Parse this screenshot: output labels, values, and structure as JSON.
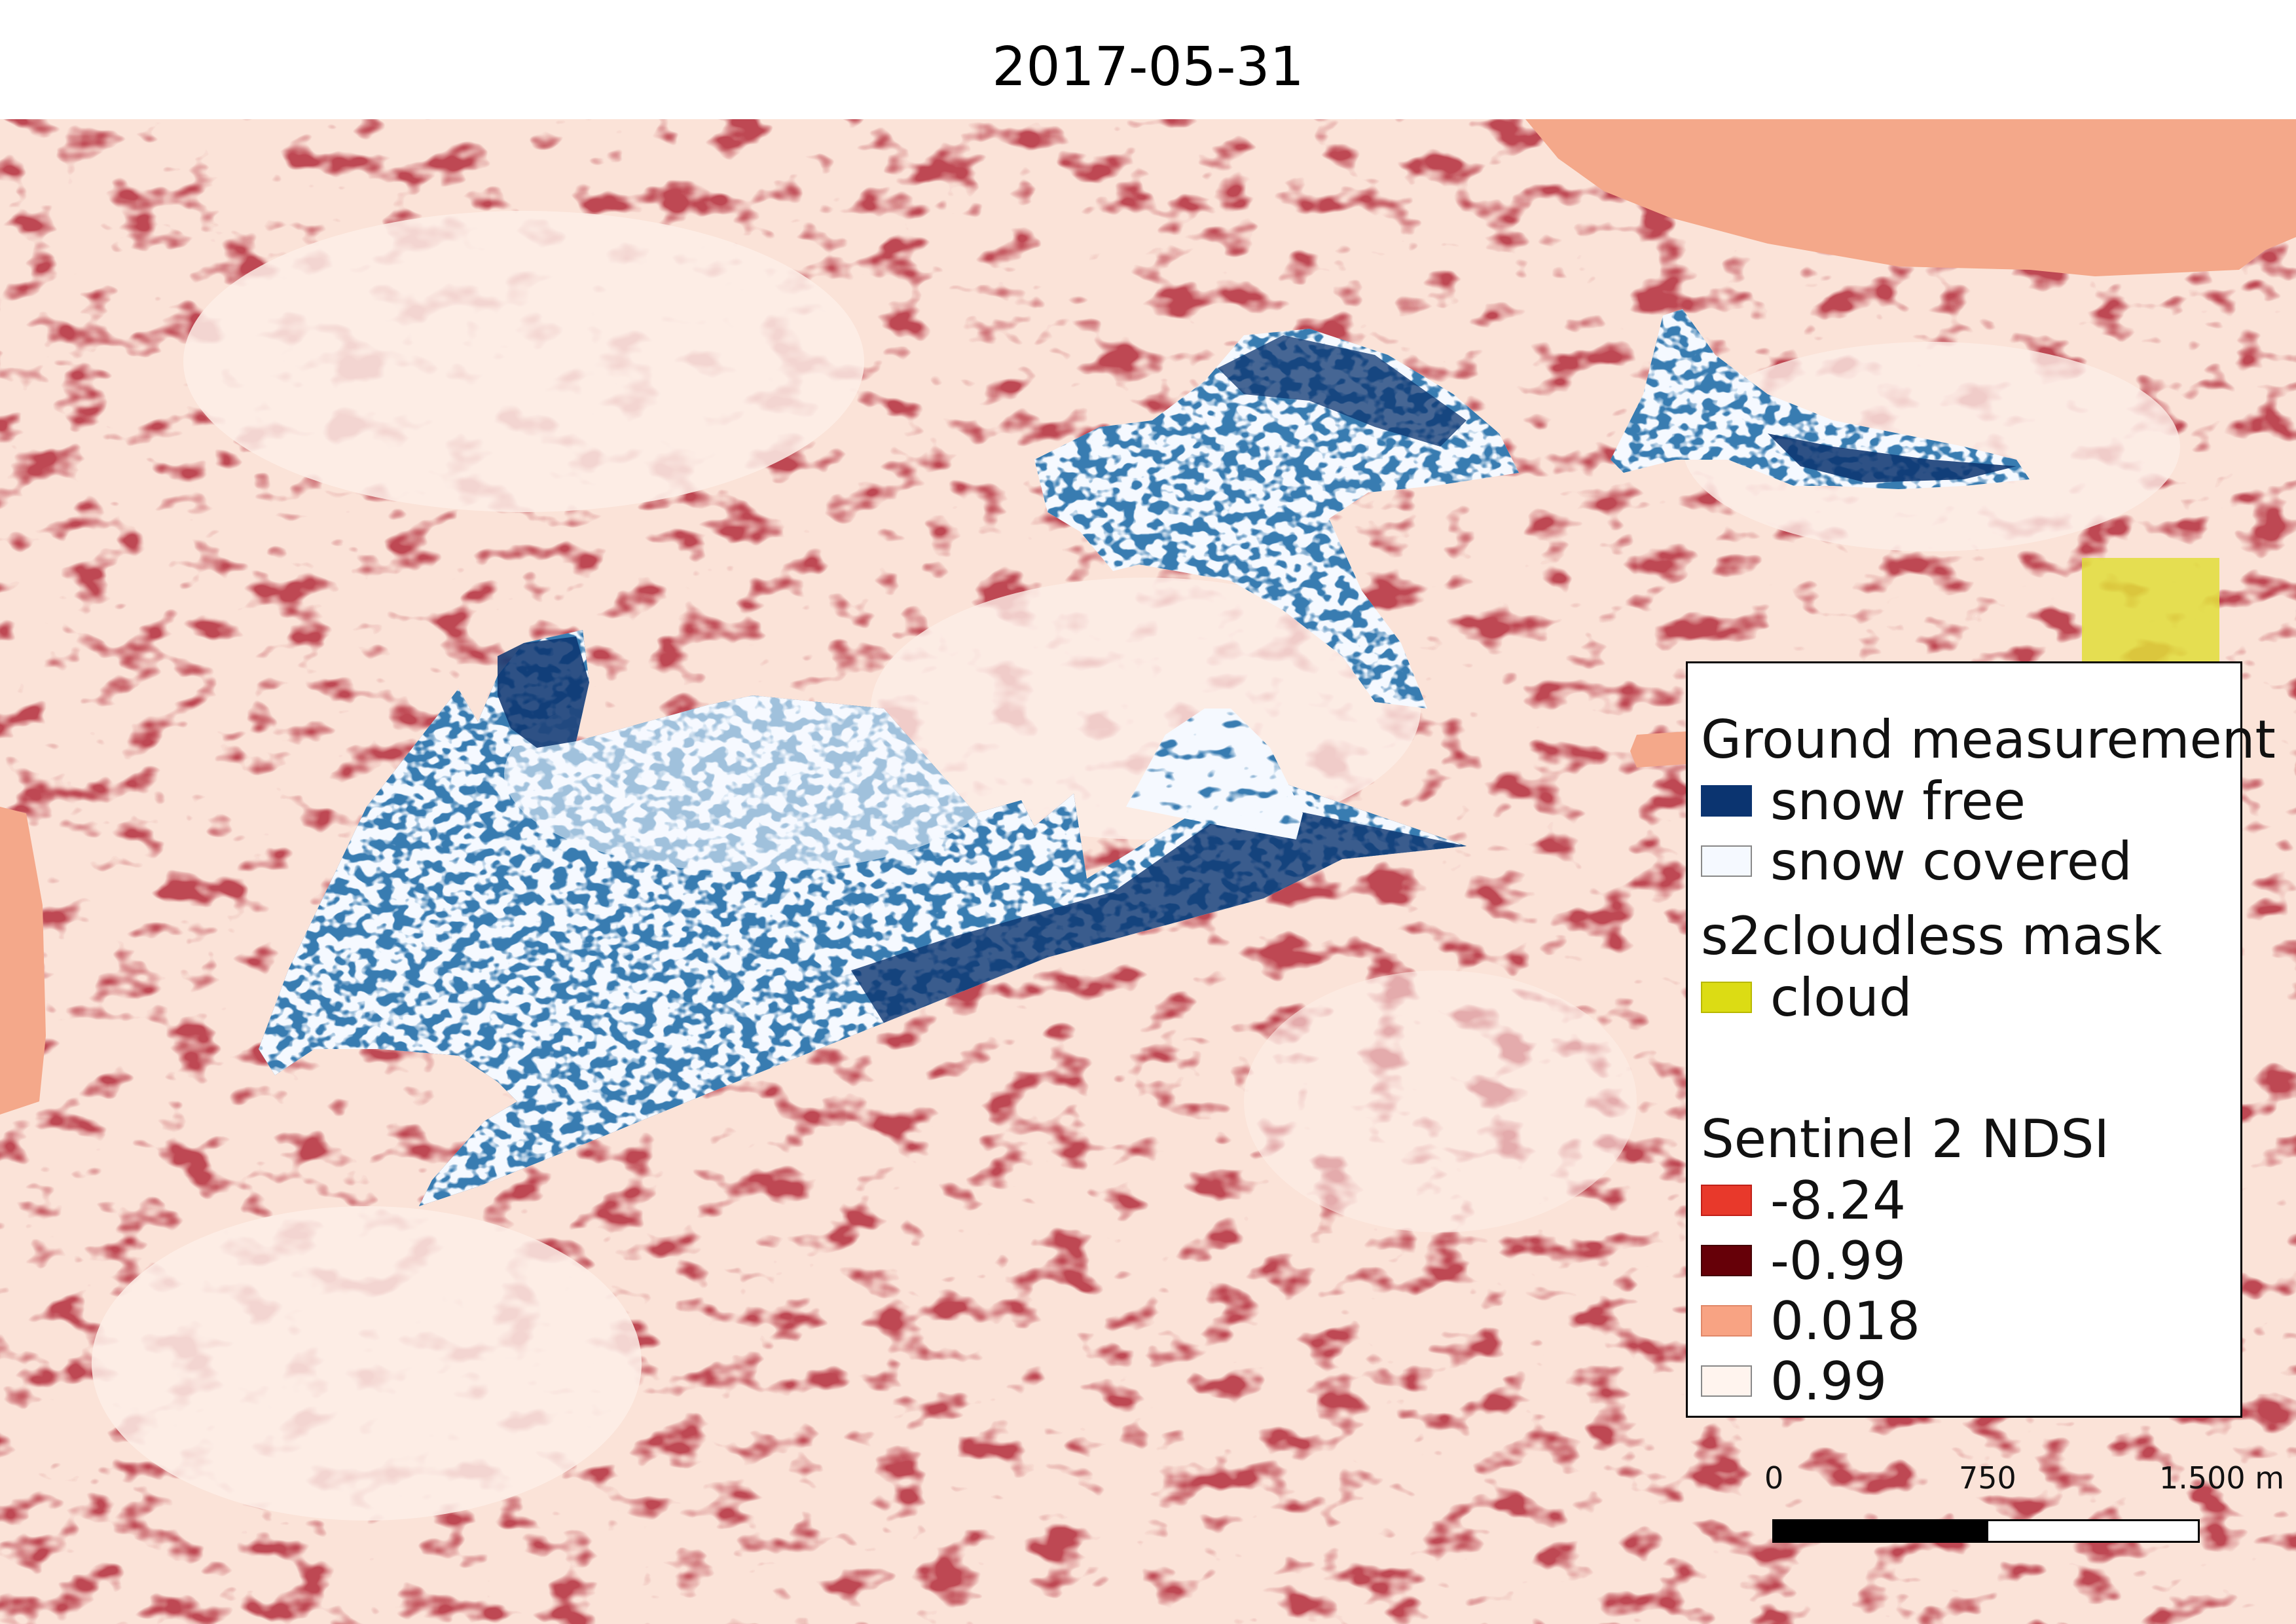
{
  "title": "2017-05-31",
  "legend": {
    "ground_heading": "Ground measurement",
    "ground_items": [
      {
        "label": "snow free",
        "color": "#0b3470"
      },
      {
        "label": "snow covered",
        "color": "#f5f9ff"
      }
    ],
    "cloud_heading": "s2cloudless mask",
    "cloud_items": [
      {
        "label": "cloud",
        "color": "#dcdc14"
      }
    ],
    "ndsi_heading": "Sentinel 2 NDSI",
    "ndsi_items": [
      {
        "label": "-8.24",
        "color": "#e8392b"
      },
      {
        "label": "-0.99",
        "color": "#660008"
      },
      {
        "label": "0.018",
        "color": "#f8a383"
      },
      {
        "label": "0.99",
        "color": "#fff4ee"
      }
    ]
  },
  "scale_bar": {
    "ticks": [
      "0",
      "750",
      "1.500 m"
    ]
  },
  "colors": {
    "ndsi_high": "#fde9e0",
    "ndsi_mid": "#f3b9a2",
    "ndsi_low": "#7a0a10",
    "snow_free": "#0b3470",
    "snow_covered": "#f5f9ff",
    "cloud": "#e0dd3a"
  }
}
